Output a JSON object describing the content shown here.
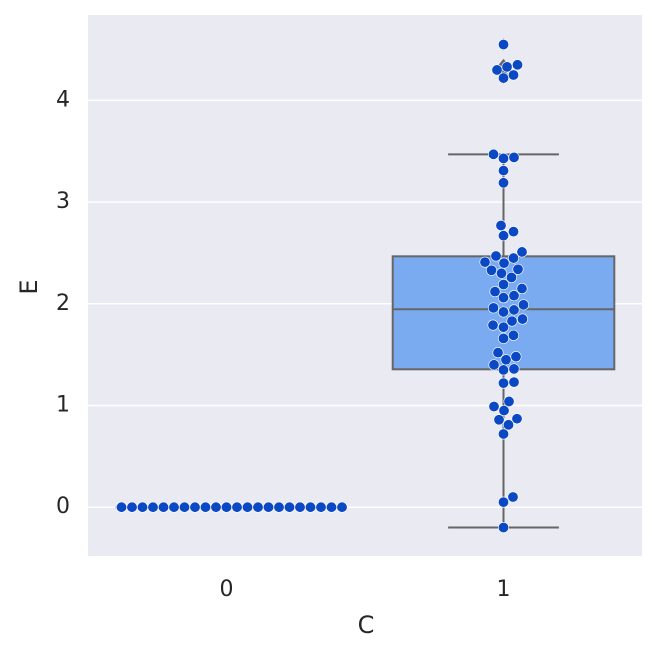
{
  "chart_data": {
    "type": "box",
    "x_label": "C",
    "y_label": "E",
    "categories": [
      "0",
      "1"
    ],
    "ylim": [
      -0.48,
      4.84
    ],
    "yticks": [
      0,
      1,
      2,
      3,
      4
    ],
    "grid": true,
    "box_color": "#7aaaf0",
    "edge_color": "#666666",
    "point_color": "#0a48c4",
    "boxes": [
      {
        "q1": 0,
        "median": 0,
        "q3": 0,
        "low": 0,
        "high": 0,
        "fliers": []
      },
      {
        "q1": 1.356,
        "median": 1.946,
        "q3": 2.467,
        "low": -0.2,
        "high": 3.47,
        "fliers": [
          4.55,
          4.35,
          4.33,
          4.3,
          4.25,
          4.22
        ]
      }
    ],
    "points": [
      [
        0,
        0,
        0,
        0,
        0,
        0,
        0,
        0,
        0,
        0,
        0,
        0,
        0,
        0,
        0,
        0,
        0,
        0,
        0,
        0,
        0,
        0
      ],
      [
        4.55,
        4.33,
        4.35,
        4.3,
        4.25,
        4.22,
        3.47,
        3.44,
        3.43,
        3.31,
        3.19,
        2.77,
        2.71,
        2.67,
        2.51,
        2.47,
        2.45,
        2.41,
        2.4,
        2.34,
        2.33,
        2.3,
        2.26,
        2.19,
        2.15,
        2.12,
        2.08,
        2.06,
        1.99,
        1.96,
        1.94,
        1.92,
        1.85,
        1.83,
        1.79,
        1.77,
        1.69,
        1.66,
        1.52,
        1.48,
        1.45,
        1.4,
        1.36,
        1.35,
        1.23,
        1.22,
        1.04,
        0.99,
        0.95,
        0.87,
        0.86,
        0.81,
        0.72,
        0.1,
        0.05,
        -0.2
      ]
    ]
  }
}
